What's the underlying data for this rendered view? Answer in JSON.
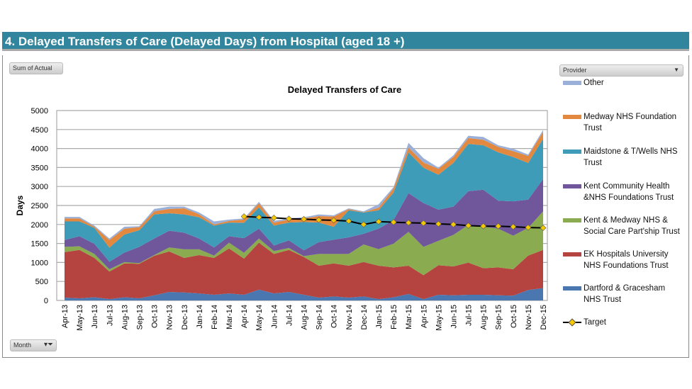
{
  "header": {
    "title": "4. Delayed Transfers of Care (Delayed Days) from Hospital (aged 18 +)"
  },
  "controls": {
    "sum_label": "Sum of Actual",
    "provider_label": "Provider",
    "month_label": "Month"
  },
  "chart_data": {
    "type": "area",
    "stacked": true,
    "title": "Delayed Transfers of Care",
    "xlabel": "",
    "ylabel": "Days",
    "ylim": [
      0,
      5000
    ],
    "yticks": [
      0,
      500,
      1000,
      1500,
      2000,
      2500,
      3000,
      3500,
      4000,
      4500,
      5000
    ],
    "grid": true,
    "legend": "right",
    "categories": [
      "Apr-13",
      "May-13",
      "Jun-13",
      "Jul-13",
      "Aug-13",
      "Sep-13",
      "Oct-13",
      "Nov-13",
      "Dec-13",
      "Jan-14",
      "Feb-14",
      "Mar-14",
      "Apr-14",
      "May-14",
      "Jun-14",
      "Jul-14",
      "Aug-14",
      "Sep-14",
      "Oct-14",
      "Nov-14",
      "Dec-14",
      "Jan-15",
      "Feb-15",
      "Mar-15",
      "Apr-15",
      "May-15",
      "Jun-15",
      "Jul-15",
      "Aug-15",
      "Sep-15",
      "Oct-15",
      "Nov-15",
      "Dec-15"
    ],
    "series": [
      {
        "name": "Dartford & Gracesham NHS Trust",
        "color": "#4a77b0",
        "values": [
          75,
          55,
          85,
          35,
          85,
          55,
          135,
          225,
          210,
          185,
          150,
          185,
          150,
          285,
          185,
          225,
          150,
          75,
          105,
          75,
          105,
          35,
          85,
          170,
          35,
          150,
          135,
          150,
          150,
          135,
          125,
          275,
          325
        ]
      },
      {
        "name": "EK Hospitals University NHS Foundations Trust",
        "color": "#b5433f",
        "values": [
          1195,
          1275,
          1035,
          725,
          890,
          910,
          1040,
          1065,
          910,
          1010,
          970,
          1185,
          950,
          1235,
          1040,
          1105,
          995,
          840,
          870,
          840,
          905,
          880,
          785,
          745,
          630,
          775,
          760,
          845,
          700,
          735,
          695,
          905,
          1005
        ]
      },
      {
        "name": "Kent & Medway NHS & Social Care Part'ship Trust",
        "color": "#8aab50",
        "values": [
          140,
          95,
          105,
          60,
          35,
          20,
          20,
          105,
          225,
          150,
          60,
          150,
          155,
          110,
          75,
          50,
          20,
          310,
          250,
          310,
          465,
          435,
          625,
          890,
          745,
          645,
          830,
          995,
          1090,
          1020,
          885,
          730,
          1015
        ]
      },
      {
        "name": "Kent Community Health &NHS Foundations Trust",
        "color": "#70569a",
        "values": [
          180,
          265,
          265,
          200,
          250,
          425,
          435,
          440,
          440,
          285,
          215,
          170,
          385,
          260,
          145,
          200,
          155,
          310,
          375,
          435,
          280,
          540,
          620,
          1020,
          1155,
          820,
          745,
          885,
          975,
          735,
          905,
          745,
          850
        ]
      },
      {
        "name": "Maidstone & T/Wells NHS Trust",
        "color": "#3f9cb8",
        "values": [
          490,
          390,
          420,
          370,
          475,
          440,
          635,
          460,
          480,
          560,
          575,
          360,
          405,
          560,
          525,
          470,
          745,
          515,
          340,
          715,
          560,
          485,
          725,
          1075,
          930,
          920,
          1150,
          1245,
          1170,
          1275,
          1165,
          965,
          1060
        ]
      },
      {
        "name": "Medway NHS Foundation Trust",
        "color": "#e3883f",
        "values": [
          80,
          80,
          30,
          200,
          155,
          80,
          80,
          115,
          160,
          80,
          30,
          45,
          85,
          110,
          80,
          80,
          95,
          170,
          270,
          30,
          10,
          65,
          110,
          125,
          135,
          155,
          155,
          155,
          145,
          145,
          155,
          185,
          185
        ]
      },
      {
        "name": "Other",
        "color": "#9bb0d8",
        "values": [
          40,
          40,
          30,
          40,
          50,
          25,
          65,
          60,
          45,
          45,
          80,
          35,
          30,
          35,
          45,
          30,
          30,
          45,
          30,
          20,
          20,
          90,
          35,
          125,
          115,
          30,
          45,
          60,
          75,
          40,
          65,
          35,
          50
        ]
      }
    ],
    "target": {
      "name": "Target",
      "color": "#000000",
      "marker_color": "#f5c800",
      "start": "Apr-14",
      "values": [
        2210,
        2190,
        2175,
        2150,
        2140,
        2120,
        2110,
        2090,
        2000,
        2075,
        2060,
        2045,
        2035,
        2015,
        2000,
        1970,
        1955,
        1955,
        1940,
        1920,
        1910
      ]
    }
  }
}
